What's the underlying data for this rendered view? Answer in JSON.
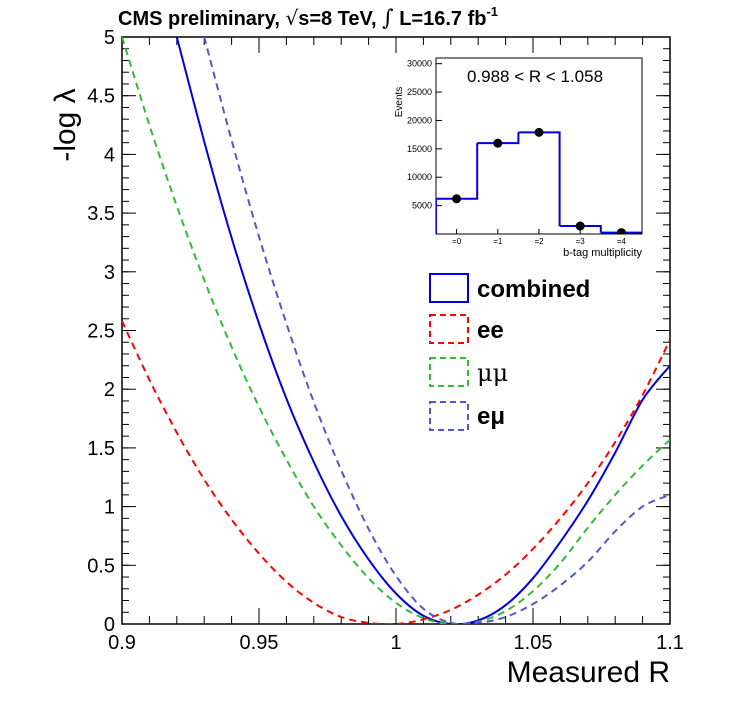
{
  "chart_data": [
    {
      "type": "line",
      "title_prefix": "CMS preliminary, ",
      "title_sqrt_s": "s=8 TeV, ",
      "title_int_symbol": "∫",
      "title_lumi": " L=16.7 fb",
      "title_lumi_exp": "-1",
      "xlabel": "Measured R",
      "ylabel": "-log λ",
      "xlim": [
        0.9,
        1.1
      ],
      "ylim": [
        0,
        5
      ],
      "xticks": [
        0.9,
        0.95,
        1,
        1.05,
        1.1
      ],
      "xtick_labels": [
        "0.9",
        "0.95",
        "1",
        "1.05",
        "1.1"
      ],
      "yticks": [
        0,
        0.5,
        1,
        1.5,
        2,
        2.5,
        3,
        3.5,
        4,
        4.5,
        5
      ],
      "ytick_labels": [
        "0",
        "0.5",
        "1",
        "1.5",
        "2",
        "2.5",
        "3",
        "3.5",
        "4",
        "4.5",
        "5"
      ],
      "grid": false,
      "legend_position": "right-middle",
      "series": [
        {
          "name": "combined",
          "label": "combined",
          "color": "#0000dd",
          "style": "solid",
          "bold": true,
          "x": [
            0.92,
            0.93,
            0.94,
            0.95,
            0.96,
            0.97,
            0.98,
            0.99,
            1.0,
            1.01,
            1.02,
            1.03,
            1.04,
            1.05,
            1.06,
            1.07,
            1.08,
            1.09,
            1.1
          ],
          "y": [
            5.0,
            4.11,
            3.29,
            2.56,
            1.92,
            1.38,
            0.92,
            0.55,
            0.26,
            0.07,
            0.0,
            0.03,
            0.16,
            0.39,
            0.7,
            1.05,
            1.46,
            1.91,
            2.2
          ]
        },
        {
          "name": "ee",
          "label": "ee",
          "color": "#ff0000",
          "style": "dashed",
          "bold": true,
          "x": [
            0.9,
            0.91,
            0.92,
            0.93,
            0.94,
            0.95,
            0.96,
            0.97,
            0.98,
            0.99,
            1.0,
            1.01,
            1.02,
            1.03,
            1.04,
            1.05,
            1.06,
            1.07,
            1.08,
            1.09,
            1.1
          ],
          "y": [
            2.58,
            2.08,
            1.63,
            1.23,
            0.89,
            0.6,
            0.36,
            0.18,
            0.06,
            0.01,
            0.0,
            0.04,
            0.12,
            0.25,
            0.42,
            0.64,
            0.9,
            1.2,
            1.55,
            1.95,
            2.42
          ]
        },
        {
          "name": "mumu",
          "label": "μμ",
          "color": "#33bb33",
          "style": "dashed",
          "bold": false,
          "x": [
            0.9,
            0.91,
            0.92,
            0.93,
            0.94,
            0.95,
            0.96,
            0.97,
            0.98,
            0.99,
            1.0,
            1.01,
            1.02,
            1.03,
            1.04,
            1.05,
            1.06,
            1.07,
            1.08,
            1.09,
            1.1
          ],
          "y": [
            5.0,
            4.25,
            3.56,
            2.93,
            2.36,
            1.85,
            1.4,
            1.0,
            0.67,
            0.39,
            0.18,
            0.05,
            0.0,
            0.02,
            0.11,
            0.28,
            0.52,
            0.82,
            1.1,
            1.35,
            1.57
          ]
        },
        {
          "name": "emu",
          "label": "eμ",
          "color": "#5555cc",
          "style": "dashed",
          "bold": true,
          "x": [
            0.93,
            0.94,
            0.95,
            0.96,
            0.97,
            0.98,
            0.99,
            1.0,
            1.01,
            1.02,
            1.03,
            1.04,
            1.05,
            1.06,
            1.07,
            1.08,
            1.09,
            1.1
          ],
          "y": [
            5.0,
            4.12,
            3.3,
            2.56,
            1.89,
            1.31,
            0.81,
            0.41,
            0.13,
            0.01,
            0.01,
            0.06,
            0.17,
            0.33,
            0.53,
            0.79,
            1.0,
            1.1
          ]
        }
      ]
    },
    {
      "type": "bar",
      "annotation": "0.988 < R < 1.058",
      "ylabel": "Events",
      "xlabel": "b-tag multiplicity",
      "categories": [
        "=0",
        "=1",
        "=2",
        "=3",
        "=4"
      ],
      "values": [
        6200,
        16000,
        17900,
        1400,
        250
      ],
      "points": [
        6200,
        16000,
        17900,
        1400,
        250
      ],
      "ylim": [
        0,
        31000
      ],
      "yticks": [
        5000,
        10000,
        15000,
        20000,
        25000,
        30000
      ],
      "ytick_labels": [
        "5000",
        "10000",
        "15000",
        "20000",
        "25000",
        "30000"
      ],
      "color": "#0000dd"
    }
  ]
}
